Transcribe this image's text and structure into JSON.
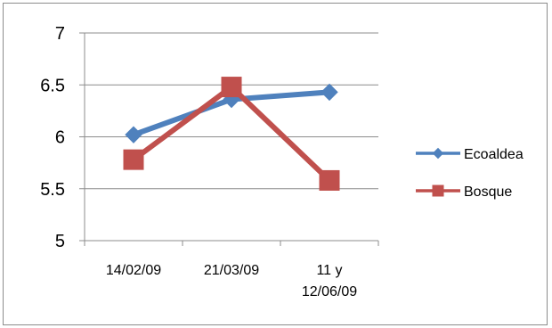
{
  "chart_data": {
    "type": "line",
    "categories": [
      [
        "14/02/09"
      ],
      [
        "21/03/09"
      ],
      [
        "11 y",
        "12/06/09"
      ]
    ],
    "series": [
      {
        "name": "Ecoaldea",
        "values": [
          6.02,
          6.36,
          6.43
        ],
        "color": "#4F81BD",
        "marker": "diamond"
      },
      {
        "name": "Bosque",
        "values": [
          5.78,
          6.48,
          5.58
        ],
        "color": "#C0504D",
        "marker": "square"
      }
    ],
    "ylim": [
      5,
      7
    ],
    "yticks": [
      5,
      5.5,
      6,
      6.5,
      7
    ],
    "ytick_labels": [
      "5",
      "5.5",
      "6",
      "6.5",
      "7"
    ],
    "grid": true,
    "legend_position": "right",
    "title": "",
    "xlabel": "",
    "ylabel": ""
  }
}
